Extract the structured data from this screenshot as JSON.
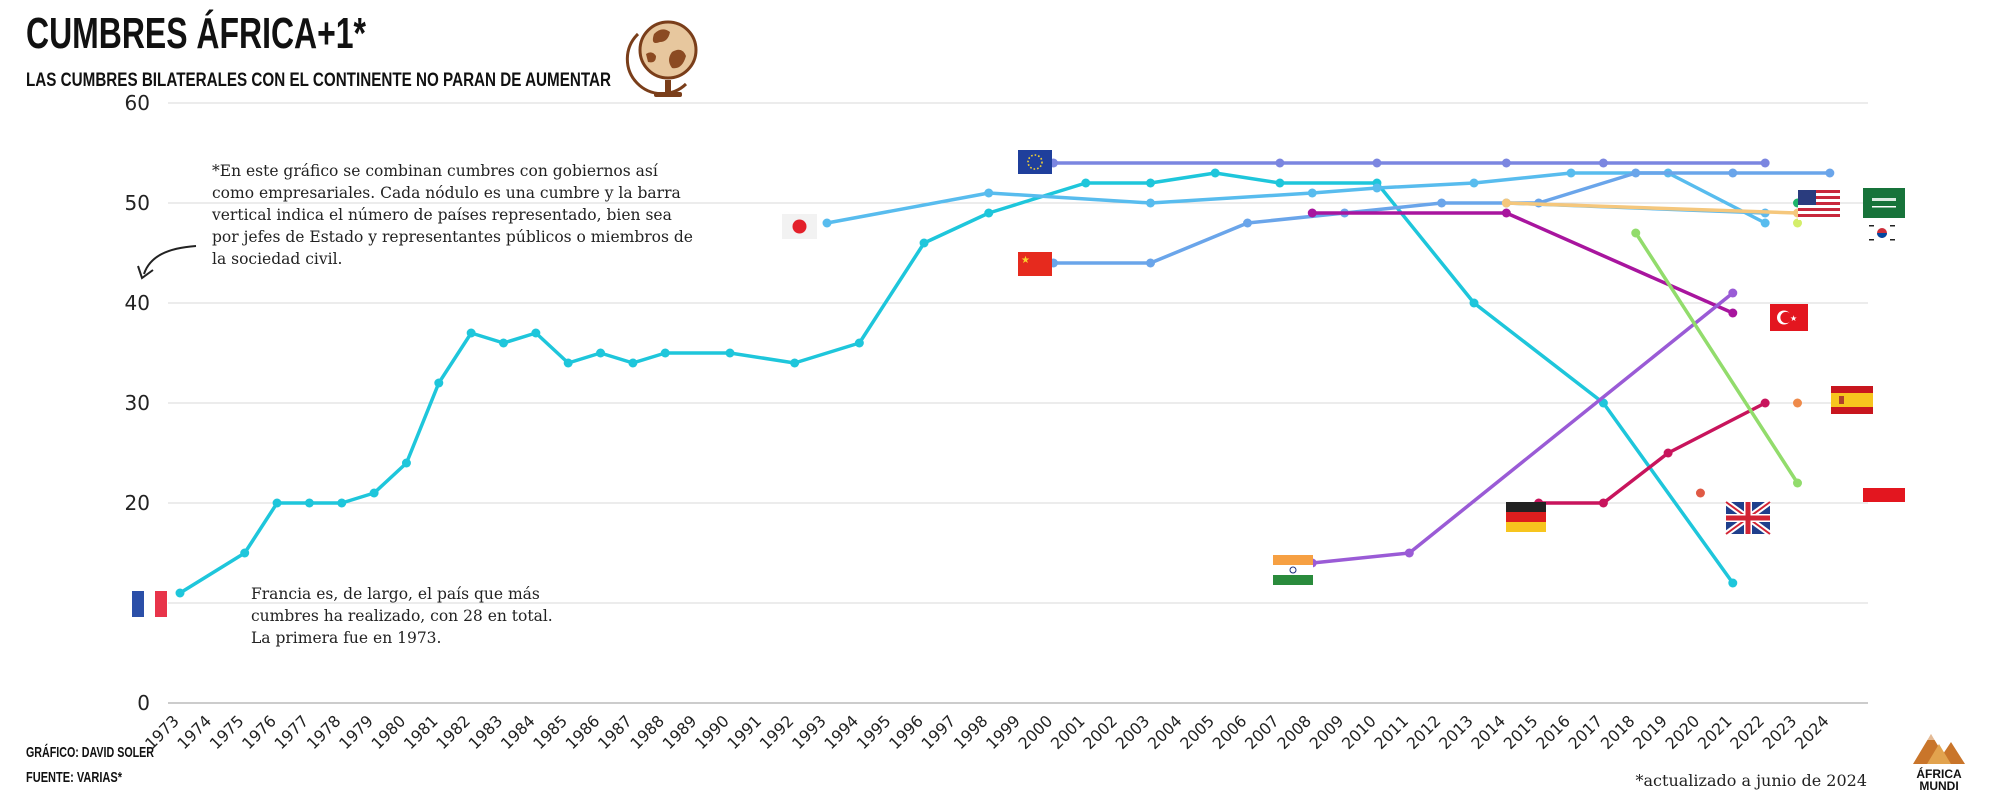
{
  "header": {
    "title": "CUMBRES ÁFRICA+1*",
    "subtitle": "LAS CUMBRES BILATERALES CON EL CONTINENTE NO PARAN DE AUMENTAR"
  },
  "annotations": {
    "note_lines": [
      "*En este gráfico se combinan cumbres con gobiernos así",
      "como empresariales. Cada nódulo es una cumbre y la barra",
      "vertical indica el número de países representado, bien sea",
      "por jefes de Estado y representantes públicos o miembros de",
      "la sociedad civil."
    ],
    "france_lines": [
      "Francia es, de largo, el país que más",
      "cumbres ha realizado, con 28 en total.",
      "La primera fue en 1973."
    ]
  },
  "footer": {
    "credit": "GRÁFICO: DAVID SOLER",
    "source": "FUENTE: VARIAS*",
    "updated": "*actualizado a junio de 2024",
    "brand_line1": "ÁFRICA",
    "brand_line2": "MUNDI"
  },
  "colors": {
    "francia": "#1EC6DB",
    "japon": "#58BCEE",
    "china": "#6AA5EA",
    "ue": "#7B86E0",
    "turquia": "#A8159E",
    "india": "#9A5BD6",
    "alemania": "#C8145C",
    "corea": "#92DC6C",
    "eeuu": "#5FB9EC",
    "espana": "#F5C77C",
    "brand": "#C9752A"
  },
  "chart_data": {
    "type": "line",
    "xlabel": "",
    "ylabel": "",
    "ylim": [
      0,
      60
    ],
    "yticks": [
      "0",
      "20",
      "30",
      "40",
      "50",
      "60"
    ],
    "grid": true,
    "legend": "flags",
    "x": [
      "1973",
      "1974",
      "1975",
      "1976",
      "1977",
      "1978",
      "1979",
      "1980",
      "1981",
      "1982",
      "1983",
      "1984",
      "1985",
      "1986",
      "1987",
      "1988",
      "1989",
      "1990",
      "1991",
      "1992",
      "1993",
      "1994",
      "1995",
      "1996",
      "1997",
      "1998",
      "1999",
      "2000",
      "2001",
      "2002",
      "2003",
      "2004",
      "2005",
      "2006",
      "2007",
      "2008",
      "2009",
      "2010",
      "2011",
      "2012",
      "2013",
      "2014",
      "2015",
      "2016",
      "2017",
      "2018",
      "2019",
      "2020",
      "2021",
      "2022",
      "2023",
      "2024"
    ],
    "series": [
      {
        "key": "francia",
        "color": "#1EC6DB",
        "points": [
          [
            1973,
            11
          ],
          [
            1975,
            15
          ],
          [
            1976,
            20
          ],
          [
            1977,
            20
          ],
          [
            1978,
            20
          ],
          [
            1979,
            21
          ],
          [
            1980,
            24
          ],
          [
            1981,
            32
          ],
          [
            1982,
            37
          ],
          [
            1983,
            36
          ],
          [
            1984,
            37
          ],
          [
            1985,
            34
          ],
          [
            1986,
            35
          ],
          [
            1987,
            34
          ],
          [
            1988,
            35
          ],
          [
            1990,
            35
          ],
          [
            1992,
            34
          ],
          [
            1994,
            36
          ],
          [
            1996,
            46
          ],
          [
            1998,
            49
          ],
          [
            2001,
            52
          ],
          [
            2003,
            52
          ],
          [
            2005,
            53
          ],
          [
            2007,
            52
          ],
          [
            2010,
            52
          ],
          [
            2013,
            40
          ],
          [
            2017,
            30
          ],
          [
            2021,
            12
          ]
        ]
      },
      {
        "key": "japon",
        "color": "#58BCEE",
        "points": [
          [
            1993,
            48
          ],
          [
            1998,
            51
          ],
          [
            2003,
            50
          ],
          [
            2008,
            51
          ],
          [
            2010,
            51.5
          ],
          [
            2013,
            52
          ],
          [
            2016,
            53
          ],
          [
            2019,
            53
          ],
          [
            2022,
            48
          ]
        ]
      },
      {
        "key": "china",
        "color": "#6AA5EA",
        "points": [
          [
            2000,
            44
          ],
          [
            2003,
            44
          ],
          [
            2006,
            48
          ],
          [
            2009,
            49
          ],
          [
            2012,
            50
          ],
          [
            2015,
            50
          ],
          [
            2018,
            53
          ],
          [
            2021,
            53
          ],
          [
            2024,
            53
          ]
        ]
      },
      {
        "key": "ue",
        "color": "#7B86E0",
        "points": [
          [
            2000,
            54
          ],
          [
            2007,
            54
          ],
          [
            2010,
            54
          ],
          [
            2014,
            54
          ],
          [
            2017,
            54
          ],
          [
            2022,
            54
          ]
        ]
      },
      {
        "key": "turquia",
        "color": "#A8159E",
        "points": [
          [
            2008,
            49
          ],
          [
            2014,
            49
          ],
          [
            2021,
            39
          ]
        ]
      },
      {
        "key": "india",
        "color": "#9A5BD6",
        "points": [
          [
            2008,
            14
          ],
          [
            2011,
            15
          ],
          [
            2021,
            41
          ]
        ]
      },
      {
        "key": "alemania",
        "color": "#C8145C",
        "points": [
          [
            2015,
            20
          ],
          [
            2017,
            20
          ],
          [
            2019,
            25
          ],
          [
            2022,
            30
          ]
        ]
      },
      {
        "key": "corea",
        "color": "#92DC6C",
        "points": [
          [
            2018,
            47
          ],
          [
            2023,
            22
          ]
        ]
      },
      {
        "key": "eeuu",
        "color": "#5FB9EC",
        "points": [
          [
            2014,
            50
          ],
          [
            2022,
            49
          ]
        ]
      },
      {
        "key": "espana",
        "color": "#F5C77C",
        "points": [
          [
            2014,
            50
          ],
          [
            2023,
            49
          ]
        ]
      }
    ],
    "extra_points": [
      {
        "key": "reino-unido",
        "color": "#E05A45",
        "points": [
          [
            2020,
            21
          ]
        ]
      },
      {
        "key": "espana-dot",
        "color": "#EE8A4A",
        "points": [
          [
            2023,
            30
          ]
        ]
      },
      {
        "key": "arabia-dot",
        "color": "#1DB56A",
        "points": [
          [
            2023,
            50
          ]
        ]
      },
      {
        "key": "corea-dot",
        "color": "#D4EE6A",
        "points": [
          [
            2023,
            48
          ]
        ]
      }
    ]
  }
}
